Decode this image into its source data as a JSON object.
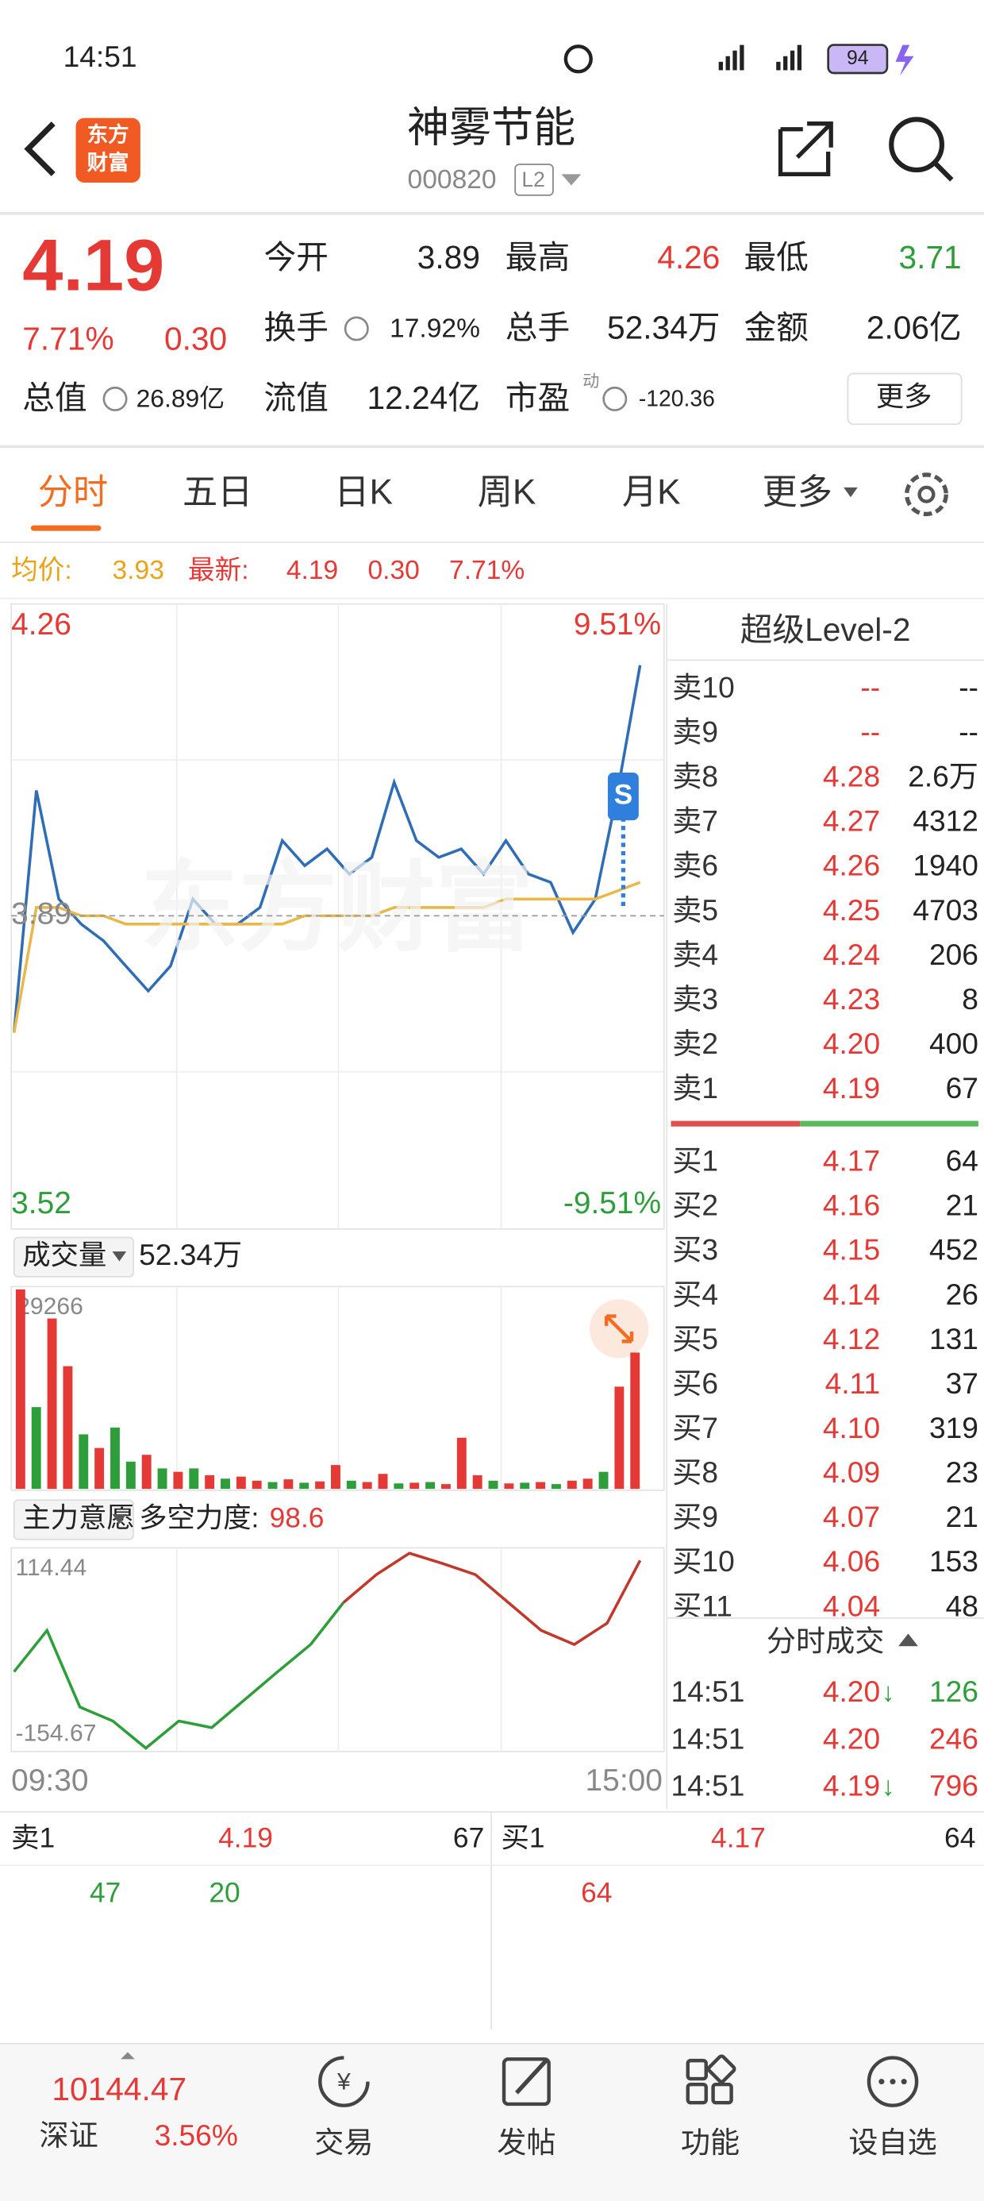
{
  "status_bar": {
    "time": "14:51",
    "battery": "94"
  },
  "header": {
    "logo_lines": [
      "东方",
      "财富"
    ],
    "title": "神雾节能",
    "code": "000820",
    "badge": "L2"
  },
  "quote": {
    "price": "4.19",
    "change_pct": "7.71%",
    "change": "0.30",
    "stats": [
      {
        "label": "今开",
        "value": "3.89",
        "color": "#222222"
      },
      {
        "label": "最高",
        "value": "4.26",
        "color": "#e53935"
      },
      {
        "label": "最低",
        "value": "3.71",
        "color": "#2e9e3a"
      },
      {
        "label": "换手",
        "value": "17.92%",
        "color": "#222222"
      },
      {
        "label": "总手",
        "value": "52.34万",
        "color": "#222222"
      },
      {
        "label": "金额",
        "value": "2.06亿",
        "color": "#222222"
      },
      {
        "label": "总值",
        "value": "26.89亿",
        "color": "#222222"
      },
      {
        "label": "流值",
        "value": "12.24亿",
        "color": "#222222"
      },
      {
        "label": "市盈",
        "superscript": "动",
        "value": "-120.36",
        "color": "#222222"
      }
    ],
    "more": "更多"
  },
  "tabs": [
    "分时",
    "五日",
    "日K",
    "周K",
    "月K",
    "更多"
  ],
  "info_line": {
    "avg_label": "均价:",
    "avg": "3.93",
    "latest_label": "最新:",
    "latest": "4.19",
    "change": "0.30",
    "pct": "7.71%"
  },
  "chart_data": [
    {
      "type": "line",
      "watermark": "东方财富",
      "ylim": [
        3.52,
        4.26
      ],
      "yticks": [
        4.26,
        3.89,
        3.52
      ],
      "y2lim": [
        -9.51,
        9.51
      ],
      "y2ticks": [
        {
          "value": 9.51,
          "label": "9.51%"
        },
        {
          "value": -9.51,
          "label": "-9.51%"
        }
      ],
      "series": [
        {
          "color": "#2f6db5",
          "values": [
            3.75,
            4.04,
            3.91,
            3.88,
            3.86,
            3.83,
            3.8,
            3.83,
            3.91,
            3.88,
            3.88,
            3.9,
            3.98,
            3.95,
            3.97,
            3.94,
            3.96,
            4.05,
            3.98,
            3.96,
            3.97,
            3.94,
            3.98,
            3.94,
            3.93,
            3.87,
            3.91,
            4.04,
            4.19
          ]
        },
        {
          "color": "#e8b84a",
          "values": [
            3.75,
            3.9,
            3.9,
            3.89,
            3.89,
            3.88,
            3.88,
            3.88,
            3.88,
            3.88,
            3.88,
            3.88,
            3.88,
            3.89,
            3.89,
            3.89,
            3.89,
            3.9,
            3.9,
            3.9,
            3.9,
            3.9,
            3.91,
            3.91,
            3.91,
            3.91,
            3.91,
            3.92,
            3.93
          ]
        }
      ]
    },
    {
      "type": "bar",
      "name": "成交量",
      "total": "52.34万",
      "ylim": [
        0,
        29266
      ],
      "yticks": [
        29266
      ],
      "values": [
        29266,
        12000,
        25000,
        18000,
        8000,
        6000,
        9000,
        4000,
        5000,
        3000,
        2500,
        3000,
        2000,
        1500,
        1800,
        1200,
        1000,
        1400,
        900,
        1100,
        3500,
        1200,
        1000,
        2200,
        800,
        900,
        1000,
        700,
        7500,
        2000,
        1200,
        800,
        900,
        1000,
        700,
        1200,
        1500,
        2500,
        15000,
        20000
      ],
      "colors": [
        "#e53935",
        "#2e9e3a",
        "#e53935",
        "#e53935",
        "#2e9e3a",
        "#e53935",
        "#2e9e3a",
        "#2e9e3a",
        "#e53935",
        "#2e9e3a",
        "#e53935",
        "#2e9e3a",
        "#e53935",
        "#2e9e3a",
        "#e53935",
        "#e53935",
        "#2e9e3a",
        "#e53935",
        "#2e9e3a",
        "#e53935",
        "#e53935",
        "#2e9e3a",
        "#e53935",
        "#e53935",
        "#2e9e3a",
        "#e53935",
        "#2e9e3a",
        "#e53935",
        "#e53935",
        "#e53935",
        "#2e9e3a",
        "#e53935",
        "#2e9e3a",
        "#e53935",
        "#2e9e3a",
        "#e53935",
        "#e53935",
        "#2e9e3a",
        "#e53935",
        "#e53935"
      ]
    },
    {
      "type": "line",
      "name": "主力意愿",
      "strength_label": "多空力度:",
      "strength": "98.6",
      "ylim": [
        -154.67,
        114.44
      ],
      "yticks": [
        114.44,
        -154.67
      ],
      "x_labels": [
        "09:30",
        "15:00"
      ],
      "series": [
        {
          "color": "#2e9e3a",
          "values": [
            -50,
            6,
            -98,
            -117,
            -154,
            -117,
            -126,
            -88,
            -50,
            -13,
            44,
            null,
            null,
            null,
            null,
            null,
            null,
            null,
            null,
            null
          ]
        },
        {
          "color": "#c0392b",
          "values": [
            null,
            null,
            null,
            null,
            null,
            null,
            null,
            null,
            null,
            null,
            44,
            82,
            111,
            97,
            82,
            44,
            6,
            -13,
            16,
            101
          ]
        }
      ]
    }
  ],
  "order_book": {
    "title": "超级Level-2",
    "sell": [
      [
        "卖10",
        "--",
        "--"
      ],
      [
        "卖9",
        "--",
        "--"
      ],
      [
        "卖8",
        "4.28",
        "2.6万"
      ],
      [
        "卖7",
        "4.27",
        "4312"
      ],
      [
        "卖6",
        "4.26",
        "1940"
      ],
      [
        "卖5",
        "4.25",
        "4703"
      ],
      [
        "卖4",
        "4.24",
        "206"
      ],
      [
        "卖3",
        "4.23",
        "8"
      ],
      [
        "卖2",
        "4.20",
        "400"
      ],
      [
        "卖1",
        "4.19",
        "67"
      ]
    ],
    "buy": [
      [
        "买1",
        "4.17",
        "64"
      ],
      [
        "买2",
        "4.16",
        "21"
      ],
      [
        "买3",
        "4.15",
        "452"
      ],
      [
        "买4",
        "4.14",
        "26"
      ],
      [
        "买5",
        "4.12",
        "131"
      ],
      [
        "买6",
        "4.11",
        "37"
      ],
      [
        "买7",
        "4.10",
        "319"
      ],
      [
        "买8",
        "4.09",
        "23"
      ],
      [
        "买9",
        "4.07",
        "21"
      ],
      [
        "买10",
        "4.06",
        "153"
      ],
      [
        "买11",
        "4.04",
        "48"
      ]
    ]
  },
  "trades": {
    "title": "分时成交",
    "rows": [
      {
        "time": "14:51",
        "price": "4.20",
        "arrow": "↓",
        "volume": "126"
      },
      {
        "time": "14:51",
        "price": "4.20",
        "volume": "246"
      },
      {
        "time": "14:51",
        "price": "4.19",
        "arrow": "↓",
        "volume": "796"
      }
    ]
  },
  "queue": {
    "sell": {
      "label": "卖1",
      "price": "4.19",
      "volume": "67",
      "orders": [
        "47",
        "20"
      ]
    },
    "buy": {
      "label": "买1",
      "price": "4.17",
      "volume": "64",
      "orders": [
        "64"
      ]
    }
  },
  "bottom_nav": {
    "index_value": "10144.47",
    "index_name": "深证",
    "index_pct": "3.56%",
    "items": [
      "交易",
      "发帖",
      "功能",
      "设自选"
    ]
  }
}
